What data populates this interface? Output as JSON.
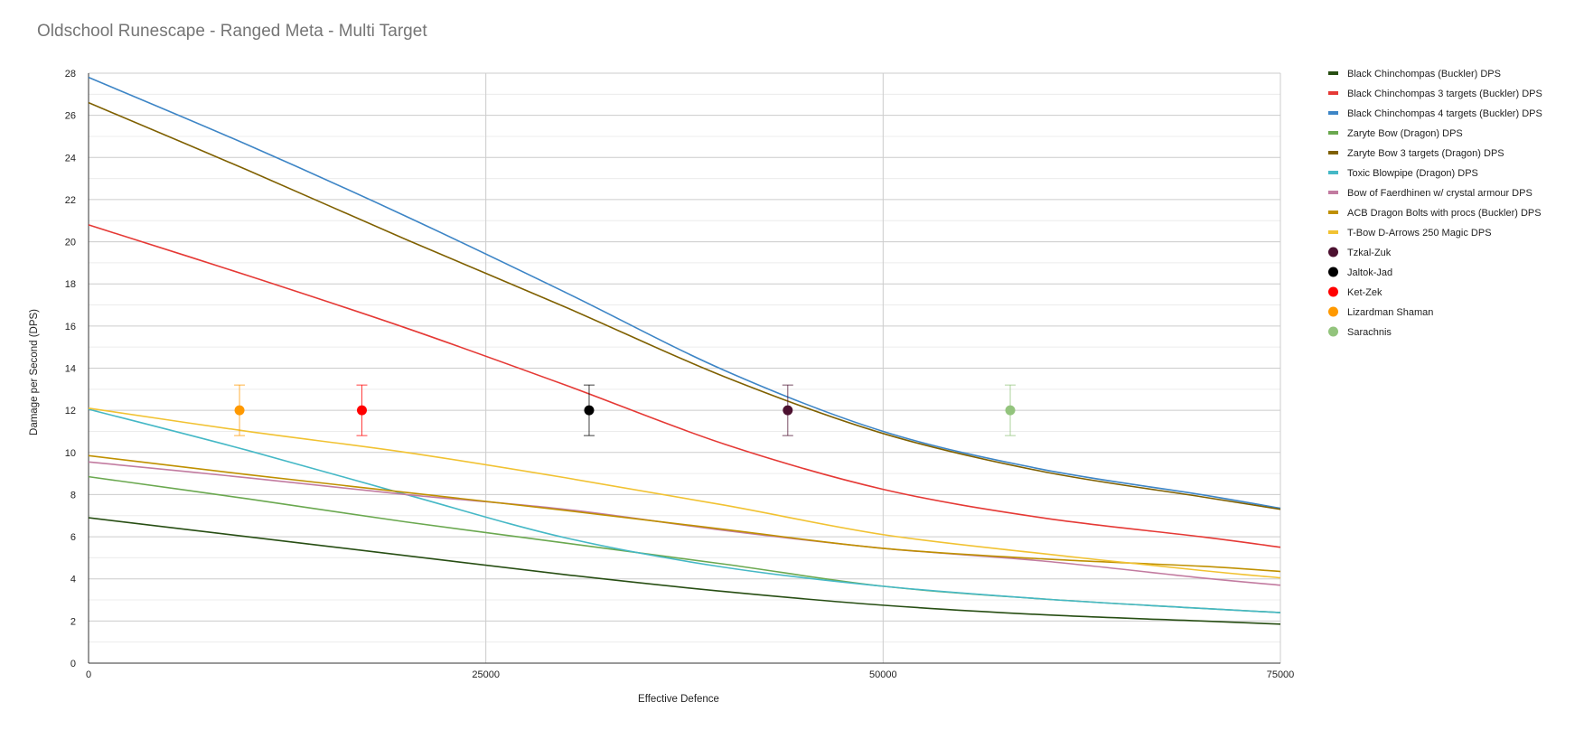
{
  "chart_data": {
    "type": "line",
    "title": "Oldschool Runescape - Ranged Meta - Multi Target",
    "xlabel": "Effective Defence",
    "ylabel": "Damage per Second (DPS)",
    "xlim": [
      0,
      75000
    ],
    "ylim": [
      0,
      28
    ],
    "x_ticks": [
      0,
      25000,
      50000,
      75000
    ],
    "y_ticks": [
      0,
      2,
      4,
      6,
      8,
      10,
      12,
      14,
      16,
      18,
      20,
      22,
      24,
      26,
      28
    ],
    "grid": true,
    "legend_position": "right",
    "series": [
      {
        "name": "Black Chinchompas (Buckler) DPS",
        "color": "#274e13",
        "x": [
          0,
          10000,
          20000,
          30000,
          40000,
          50000,
          60000,
          70000,
          75000
        ],
        "values": [
          6.9,
          6.0,
          5.1,
          4.2,
          3.4,
          2.75,
          2.3,
          2.0,
          1.85
        ]
      },
      {
        "name": "Black Chinchompas 3 targets (Buckler) DPS",
        "color": "#e53935",
        "x": [
          0,
          10000,
          20000,
          30000,
          40000,
          50000,
          60000,
          70000,
          75000
        ],
        "values": [
          20.8,
          18.4,
          15.9,
          13.2,
          10.4,
          8.25,
          6.9,
          6.0,
          5.5
        ]
      },
      {
        "name": "Black Chinchompas 4 targets (Buckler) DPS",
        "color": "#3d85c6",
        "x": [
          0,
          10000,
          20000,
          30000,
          40000,
          50000,
          60000,
          70000,
          75000
        ],
        "values": [
          27.8,
          24.6,
          21.2,
          17.6,
          13.9,
          11.0,
          9.2,
          8.0,
          7.35
        ]
      },
      {
        "name": "Zaryte Bow (Dragon) DPS",
        "color": "#6aa84f",
        "x": [
          0,
          10000,
          20000,
          30000,
          40000,
          50000,
          60000,
          70000,
          75000
        ],
        "values": [
          8.85,
          7.8,
          6.7,
          5.7,
          4.7,
          3.65,
          3.05,
          2.6,
          2.4
        ]
      },
      {
        "name": "Zaryte Bow 3 targets (Dragon) DPS",
        "color": "#7f6000",
        "x": [
          0,
          10000,
          20000,
          30000,
          40000,
          50000,
          60000,
          70000,
          75000
        ],
        "values": [
          26.6,
          23.4,
          20.1,
          16.9,
          13.6,
          10.9,
          9.1,
          7.9,
          7.3
        ]
      },
      {
        "name": "Toxic Blowpipe (Dragon) DPS",
        "color": "#45b8c6",
        "x": [
          0,
          10000,
          20000,
          30000,
          40000,
          50000,
          60000,
          70000,
          75000
        ],
        "values": [
          12.05,
          10.1,
          8.0,
          5.95,
          4.55,
          3.65,
          3.05,
          2.6,
          2.4
        ]
      },
      {
        "name": "Bow of Faerdhinen w/ crystal armour DPS",
        "color": "#c27ba0",
        "x": [
          0,
          10000,
          20000,
          30000,
          40000,
          50000,
          60000,
          70000,
          75000
        ],
        "values": [
          9.55,
          8.8,
          8.0,
          7.3,
          6.3,
          5.45,
          4.85,
          4.05,
          3.7
        ]
      },
      {
        "name": "ACB Dragon Bolts with procs (Buckler) DPS",
        "color": "#bf9000",
        "x": [
          0,
          10000,
          20000,
          30000,
          40000,
          50000,
          60000,
          70000,
          75000
        ],
        "values": [
          9.85,
          8.95,
          8.1,
          7.25,
          6.35,
          5.45,
          4.95,
          4.6,
          4.35
        ]
      },
      {
        "name": "T-Bow D-Arrows 250 Magic DPS",
        "color": "#f1c232",
        "x": [
          0,
          10000,
          20000,
          30000,
          40000,
          50000,
          60000,
          70000,
          75000
        ],
        "values": [
          12.1,
          11.0,
          10.0,
          8.8,
          7.5,
          6.1,
          5.2,
          4.4,
          4.05
        ]
      }
    ],
    "points": [
      {
        "name": "Tzkal-Zuk",
        "color": "#4c1130",
        "x": 44000,
        "y": 12,
        "error": 1.2
      },
      {
        "name": "Jaltok-Jad",
        "color": "#000000",
        "x": 31500,
        "y": 12,
        "error": 1.2
      },
      {
        "name": "Ket-Zek",
        "color": "#ff0000",
        "x": 17200,
        "y": 12,
        "error": 1.2
      },
      {
        "name": "Lizardman Shaman",
        "color": "#ff9900",
        "x": 9500,
        "y": 12,
        "error": 1.2
      },
      {
        "name": "Sarachnis",
        "color": "#93c47d",
        "x": 58000,
        "y": 12,
        "error": 1.2
      }
    ]
  }
}
